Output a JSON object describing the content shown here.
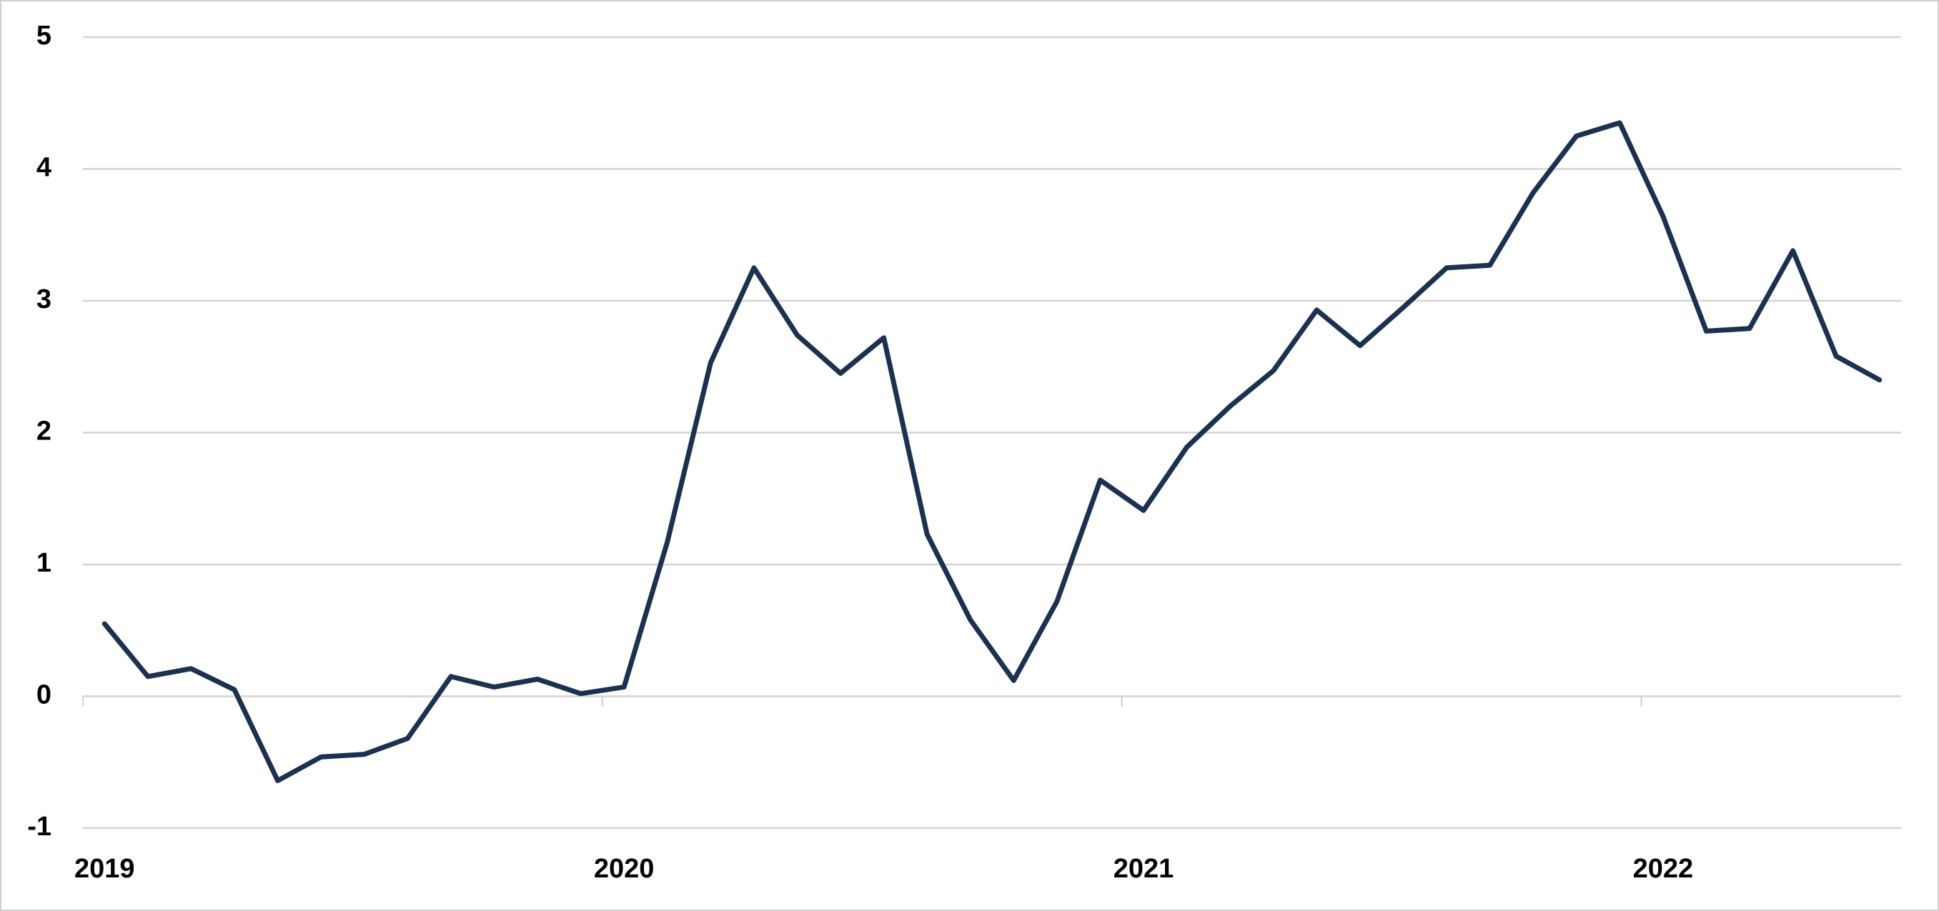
{
  "chart_data": {
    "type": "line",
    "categories": [
      "2019",
      null,
      null,
      null,
      null,
      null,
      null,
      null,
      null,
      null,
      null,
      null,
      "2020",
      null,
      null,
      null,
      null,
      null,
      null,
      null,
      null,
      null,
      null,
      null,
      "2021",
      null,
      null,
      null,
      null,
      null,
      null,
      null,
      null,
      null,
      null,
      null,
      "2022",
      null,
      null,
      null,
      null,
      null
    ],
    "series": [
      {
        "color": "#1c3050",
        "values": [
          0.55,
          0.15,
          0.21,
          0.05,
          -0.64,
          -0.46,
          -0.44,
          -0.32,
          0.15,
          0.07,
          0.13,
          0.02,
          0.07,
          1.17,
          2.53,
          3.25,
          2.74,
          2.45,
          2.72,
          1.23,
          0.58,
          0.12,
          0.72,
          1.64,
          1.41,
          1.89,
          2.2,
          2.47,
          2.93,
          2.66,
          2.95,
          3.25,
          3.27,
          3.82,
          4.25,
          4.35,
          3.64,
          2.77,
          2.79,
          3.38,
          2.58,
          2.4
        ]
      }
    ],
    "ylim": [
      -1,
      5
    ],
    "yticks": [
      -1,
      0,
      1,
      2,
      3,
      4,
      5
    ],
    "grid": true
  }
}
